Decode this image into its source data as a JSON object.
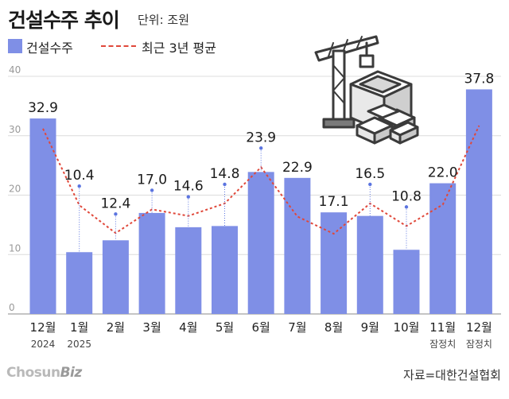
{
  "title": "건설수주 추이",
  "unit": "단위: 조원",
  "legend": {
    "bar": "건설수주",
    "line": "최근 3년 평균"
  },
  "logo": {
    "main": "Chosun",
    "biz": "Biz"
  },
  "source": "자료=대한건설협회",
  "colors": {
    "bar": "#7f8fe6",
    "line": "#e0483a",
    "marker": "#5b74e0",
    "grid": "#dcdcdc"
  },
  "icon": "crane-construction-blocks",
  "chart_data": {
    "type": "bar",
    "ylim": [
      0,
      40
    ],
    "yticks": [
      "0",
      "10",
      "20",
      "30",
      "40"
    ],
    "categories": [
      "12월",
      "1월",
      "2월",
      "3월",
      "4월",
      "5월",
      "6월",
      "7월",
      "8월",
      "9월",
      "10월",
      "11월",
      "12월"
    ],
    "sublabels": [
      "2024",
      "2025",
      "",
      "",
      "",
      "",
      "",
      "",
      "",
      "",
      "",
      "잠정치",
      "잠정치"
    ],
    "value_labels": [
      "32.9",
      "10.4",
      "12.4",
      "17.0",
      "14.6",
      "14.8",
      "23.9",
      "22.9",
      "17.1",
      "16.5",
      "10.8",
      "22.0",
      "37.8"
    ],
    "series": [
      {
        "name": "건설수주",
        "type": "bar",
        "values": [
          32.9,
          10.4,
          12.4,
          17.0,
          14.6,
          14.8,
          23.9,
          22.9,
          17.1,
          16.5,
          10.8,
          22.0,
          37.8
        ]
      },
      {
        "name": "최근 3년 평균",
        "type": "line",
        "values": [
          31.2,
          18.3,
          13.6,
          17.6,
          16.5,
          18.6,
          24.7,
          16.4,
          13.5,
          18.6,
          14.8,
          18.4,
          31.7
        ]
      }
    ],
    "grid": true,
    "legend_position": "top-left"
  }
}
